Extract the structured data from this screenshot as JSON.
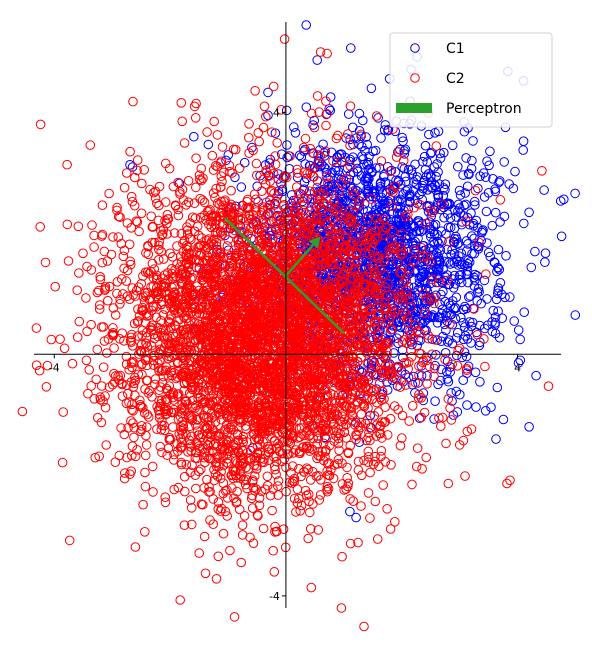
{
  "chart_data": {
    "type": "scatter",
    "xlim": [
      -4.35,
      4.75
    ],
    "ylim": [
      -4.2,
      5.5
    ],
    "spines": "centered at origin",
    "grid": false,
    "legend_position": "top-right",
    "x_ticks": [
      {
        "value": -4,
        "label": "-4"
      },
      {
        "value": 4,
        "label": "4"
      }
    ],
    "y_ticks": [
      {
        "value": 4,
        "label": "4"
      },
      {
        "value": -4,
        "label": "-4"
      }
    ],
    "legend": [
      {
        "label": "C1",
        "color": "#0000ff",
        "marker": "open-circle"
      },
      {
        "label": "C2",
        "color": "#ff0000",
        "marker": "open-circle"
      },
      {
        "label": "Perceptron",
        "color": "#2ca02c",
        "marker": "bar"
      }
    ],
    "series": [
      {
        "name": "C1",
        "color": "#0000ff",
        "marker": "open-circle",
        "distribution": {
          "center": [
            1.5,
            1.6
          ],
          "std": [
            1.05,
            1.05
          ]
        },
        "approx_count": 2000,
        "notable_points": [
          [
            0.35,
            5.45
          ],
          [
            4.2,
            -1.2
          ],
          [
            -2.65,
            3.1
          ],
          [
            4.3,
            1.7
          ],
          [
            4.2,
            2.35
          ]
        ]
      },
      {
        "name": "C2",
        "color": "#ff0000",
        "marker": "open-circle",
        "distribution": {
          "center": [
            -0.4,
            0.3
          ],
          "std": [
            1.25,
            1.3
          ]
        },
        "approx_count": 4500,
        "notable_points": [
          [
            -3.9,
            0.25
          ],
          [
            -3.25,
            -1.05
          ],
          [
            -0.2,
            -3.6
          ],
          [
            -2.75,
            3.0
          ],
          [
            3.0,
            -1.5
          ]
        ]
      }
    ],
    "perceptron": {
      "color": "#2ca02c",
      "boundary_line": [
        [
          -1.05,
          2.25
        ],
        [
          1.0,
          0.35
        ]
      ],
      "normal_arrow": {
        "from": [
          0.0,
          1.3
        ],
        "to": [
          0.6,
          1.95
        ]
      }
    }
  }
}
